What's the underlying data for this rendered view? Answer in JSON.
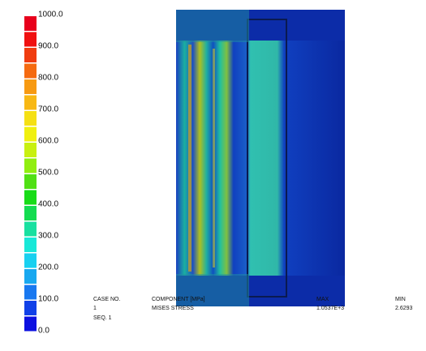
{
  "legend": {
    "levels": [
      {
        "value": 1000,
        "label": "1000.0"
      },
      {
        "value": 900,
        "label": "900.0"
      },
      {
        "value": 800,
        "label": "800.0"
      },
      {
        "value": 700,
        "label": "700.0"
      },
      {
        "value": 600,
        "label": "600.0"
      },
      {
        "value": 500,
        "label": "500.0"
      },
      {
        "value": 400,
        "label": "400.0"
      },
      {
        "value": 300,
        "label": "300.0"
      },
      {
        "value": 200,
        "label": "200.0"
      },
      {
        "value": 100,
        "label": "100.0"
      },
      {
        "value": 0,
        "label": "0.0"
      }
    ],
    "colors": [
      "#e8001c",
      "#f01010",
      "#f03c10",
      "#f56a10",
      "#f79a12",
      "#f8b814",
      "#f5e014",
      "#f0f010",
      "#c8f010",
      "#90ee10",
      "#50e014",
      "#18dc18",
      "#14dc50",
      "#18e0a0",
      "#18e8d8",
      "#18d0f0",
      "#18a8f0",
      "#1878f0",
      "#1040e8",
      "#0c10e0"
    ]
  },
  "info": {
    "case_header": "CASE NO.",
    "case_value": "1",
    "seq": "SEQ. 1",
    "component_header": "COMPONENT [MPa]",
    "component_value": "MISES STRESS",
    "max_header": "MAX",
    "max_value": "1.0537E+3",
    "min_header": "MIN",
    "min_value": "2.6293"
  }
}
